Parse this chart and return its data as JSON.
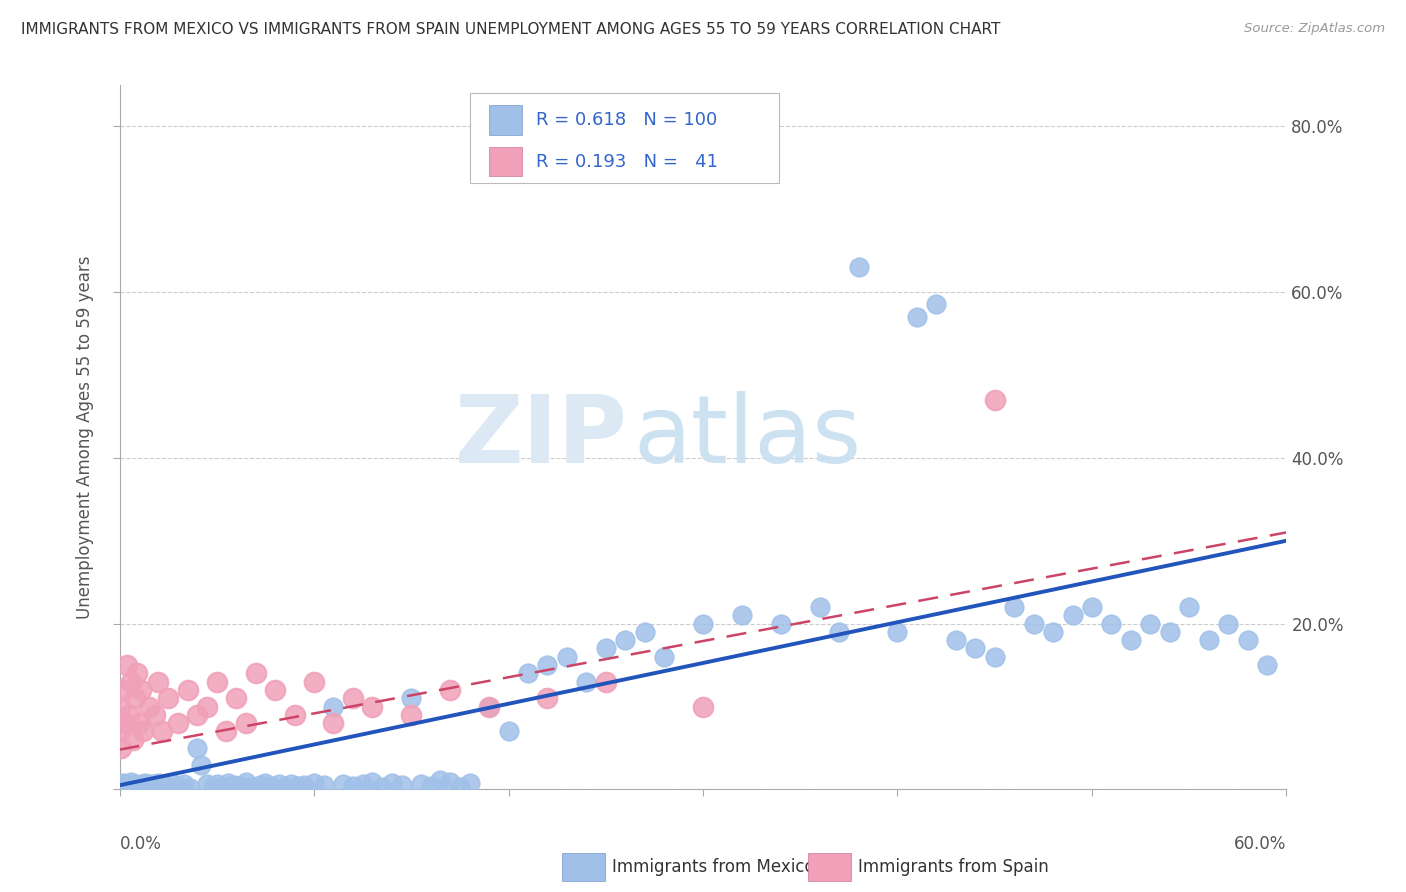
{
  "title": "IMMIGRANTS FROM MEXICO VS IMMIGRANTS FROM SPAIN UNEMPLOYMENT AMONG AGES 55 TO 59 YEARS CORRELATION CHART",
  "source": "Source: ZipAtlas.com",
  "ylabel": "Unemployment Among Ages 55 to 59 years",
  "legend_label1": "Immigrants from Mexico",
  "legend_label2": "Immigrants from Spain",
  "R1": 0.618,
  "N1": 100,
  "R2": 0.193,
  "N2": 41,
  "color_mexico": "#a0c0e8",
  "color_spain": "#f0a0b8",
  "color_mexico_line": "#2255bb",
  "color_spain_line": "#cc4466",
  "watermark_zip": "ZIP",
  "watermark_atlas": "atlas",
  "xlim": [
    0.0,
    0.6
  ],
  "ylim": [
    0.0,
    0.85
  ],
  "yticks": [
    0.0,
    0.2,
    0.4,
    0.6,
    0.8
  ],
  "mexico_trend_x": [
    0.0,
    0.6
  ],
  "mexico_trend_y": [
    0.005,
    0.3
  ],
  "spain_trend_x": [
    0.0,
    0.6
  ],
  "spain_trend_y": [
    0.048,
    0.31
  ],
  "mexico_x": [
    0.0,
    0.001,
    0.002,
    0.003,
    0.004,
    0.005,
    0.006,
    0.007,
    0.008,
    0.009,
    0.01,
    0.011,
    0.012,
    0.013,
    0.014,
    0.015,
    0.016,
    0.017,
    0.018,
    0.019,
    0.02,
    0.021,
    0.022,
    0.025,
    0.028,
    0.03,
    0.033,
    0.036,
    0.04,
    0.042,
    0.045,
    0.048,
    0.05,
    0.053,
    0.056,
    0.059,
    0.062,
    0.065,
    0.068,
    0.072,
    0.075,
    0.078,
    0.082,
    0.085,
    0.088,
    0.092,
    0.095,
    0.1,
    0.105,
    0.11,
    0.115,
    0.12,
    0.125,
    0.13,
    0.135,
    0.14,
    0.145,
    0.15,
    0.155,
    0.16,
    0.165,
    0.17,
    0.175,
    0.18,
    0.19,
    0.2,
    0.21,
    0.22,
    0.23,
    0.24,
    0.25,
    0.26,
    0.27,
    0.28,
    0.3,
    0.32,
    0.34,
    0.36,
    0.38,
    0.4,
    0.41,
    0.42,
    0.43,
    0.45,
    0.46,
    0.47,
    0.48,
    0.5,
    0.51,
    0.52,
    0.53,
    0.54,
    0.55,
    0.56,
    0.57,
    0.58,
    0.59,
    0.44,
    0.49,
    0.37
  ],
  "mexico_y": [
    0.005,
    0.003,
    0.008,
    0.004,
    0.006,
    0.003,
    0.009,
    0.002,
    0.007,
    0.005,
    0.004,
    0.006,
    0.003,
    0.008,
    0.005,
    0.004,
    0.007,
    0.004,
    0.006,
    0.003,
    0.008,
    0.005,
    0.004,
    0.003,
    0.007,
    0.004,
    0.006,
    0.002,
    0.05,
    0.03,
    0.007,
    0.004,
    0.006,
    0.003,
    0.008,
    0.005,
    0.004,
    0.009,
    0.003,
    0.005,
    0.008,
    0.004,
    0.006,
    0.003,
    0.007,
    0.004,
    0.005,
    0.008,
    0.005,
    0.1,
    0.007,
    0.004,
    0.006,
    0.009,
    0.003,
    0.008,
    0.005,
    0.11,
    0.007,
    0.004,
    0.011,
    0.009,
    0.003,
    0.008,
    0.1,
    0.07,
    0.14,
    0.15,
    0.16,
    0.13,
    0.17,
    0.18,
    0.19,
    0.16,
    0.2,
    0.21,
    0.2,
    0.22,
    0.63,
    0.19,
    0.57,
    0.585,
    0.18,
    0.16,
    0.22,
    0.2,
    0.19,
    0.22,
    0.2,
    0.18,
    0.2,
    0.19,
    0.22,
    0.18,
    0.2,
    0.18,
    0.15,
    0.17,
    0.21,
    0.19
  ],
  "spain_x": [
    0.0,
    0.0,
    0.001,
    0.002,
    0.003,
    0.004,
    0.005,
    0.006,
    0.007,
    0.008,
    0.009,
    0.01,
    0.011,
    0.012,
    0.015,
    0.018,
    0.02,
    0.022,
    0.025,
    0.03,
    0.035,
    0.04,
    0.045,
    0.05,
    0.055,
    0.06,
    0.065,
    0.07,
    0.08,
    0.09,
    0.1,
    0.11,
    0.12,
    0.13,
    0.15,
    0.17,
    0.19,
    0.22,
    0.25,
    0.3,
    0.45
  ],
  "spain_y": [
    0.07,
    0.1,
    0.05,
    0.12,
    0.08,
    0.15,
    0.09,
    0.13,
    0.06,
    0.11,
    0.14,
    0.08,
    0.12,
    0.07,
    0.1,
    0.09,
    0.13,
    0.07,
    0.11,
    0.08,
    0.12,
    0.09,
    0.1,
    0.13,
    0.07,
    0.11,
    0.08,
    0.14,
    0.12,
    0.09,
    0.13,
    0.08,
    0.11,
    0.1,
    0.09,
    0.12,
    0.1,
    0.11,
    0.13,
    0.1,
    0.47
  ]
}
